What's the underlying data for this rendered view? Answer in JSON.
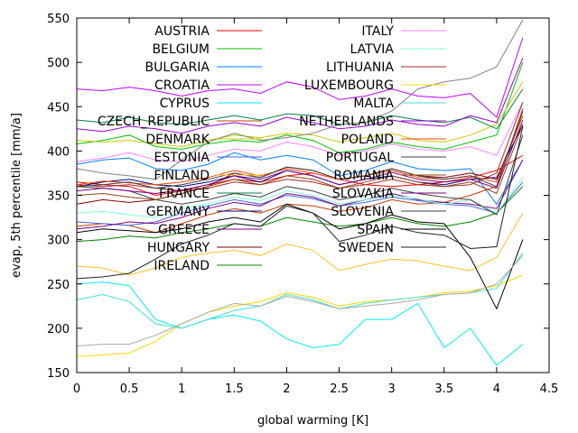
{
  "chart_data": {
    "type": "line",
    "title": "",
    "xlabel": "global warming [K]",
    "ylabel": "evap, 5th percentile [mm/a]",
    "xlim": [
      0,
      4.5
    ],
    "ylim": [
      150,
      550
    ],
    "x_ticks": [
      "0",
      "0.5",
      "1",
      "1.5",
      "2",
      "2.5",
      "3",
      "3.5",
      "4",
      "4.5"
    ],
    "y_ticks": [
      "150",
      "200",
      "250",
      "300",
      "350",
      "400",
      "450",
      "500",
      "550"
    ],
    "grid": false,
    "legend_position": "top, inside, two columns",
    "x": [
      0,
      0.25,
      0.5,
      0.75,
      1,
      1.25,
      1.5,
      1.75,
      2,
      2.25,
      2.5,
      2.75,
      3,
      3.25,
      3.5,
      3.75,
      4,
      4.25
    ],
    "series": [
      {
        "name": "AUSTRIA",
        "color": "#ff0000",
        "values": [
          365,
          362,
          360,
          350,
          355,
          362,
          368,
          365,
          372,
          375,
          368,
          362,
          360,
          362,
          365,
          370,
          378,
          395
        ]
      },
      {
        "name": "BELGIUM",
        "color": "#00c000",
        "values": [
          408,
          412,
          418,
          405,
          402,
          408,
          412,
          410,
          418,
          412,
          398,
          402,
          410,
          405,
          402,
          410,
          418,
          500
        ]
      },
      {
        "name": "BULGARIA",
        "color": "#0080ff",
        "values": [
          385,
          390,
          392,
          380,
          378,
          385,
          398,
          390,
          395,
          390,
          372,
          378,
          388,
          380,
          378,
          380,
          340,
          390
        ]
      },
      {
        "name": "CROATIA",
        "color": "#c000ff",
        "values": [
          470,
          468,
          472,
          468,
          462,
          468,
          470,
          465,
          478,
          472,
          458,
          462,
          470,
          462,
          460,
          465,
          438,
          528
        ]
      },
      {
        "name": "CYPRUS",
        "color": "#00eeee",
        "values": [
          250,
          252,
          248,
          210,
          200,
          210,
          215,
          208,
          188,
          178,
          182,
          210,
          210,
          228,
          178,
          200,
          158,
          182
        ]
      },
      {
        "name": "CZECH_REPUBLIC",
        "color": "#c04000",
        "values": [
          315,
          318,
          316,
          308,
          318,
          328,
          335,
          330,
          340,
          338,
          332,
          336,
          345,
          340,
          342,
          350,
          360,
          448
        ]
      },
      {
        "name": "DENMARK",
        "color": "#c8c800",
        "values": [
          412,
          410,
          412,
          408,
          405,
          412,
          418,
          415,
          420,
          418,
          410,
          415,
          420,
          412,
          410,
          418,
          430,
          478
        ]
      },
      {
        "name": "ESTONIA",
        "color": "#4169e1",
        "values": [
          320,
          318,
          316,
          320,
          330,
          338,
          345,
          340,
          350,
          346,
          338,
          342,
          348,
          344,
          340,
          338,
          330,
          365
        ]
      },
      {
        "name": "FINLAND",
        "color": "#ffc020",
        "values": [
          270,
          268,
          260,
          268,
          280,
          285,
          288,
          282,
          295,
          288,
          265,
          272,
          278,
          276,
          270,
          265,
          280,
          330
        ]
      },
      {
        "name": "FRANCE",
        "color": "#008040",
        "values": [
          435,
          432,
          438,
          432,
          430,
          435,
          440,
          435,
          442,
          440,
          430,
          432,
          440,
          435,
          432,
          438,
          425,
          470
        ]
      },
      {
        "name": "GERMANY",
        "color": "#000080",
        "values": [
          360,
          365,
          368,
          362,
          360,
          365,
          372,
          365,
          378,
          372,
          362,
          368,
          372,
          365,
          362,
          368,
          370,
          430
        ]
      },
      {
        "name": "GREECE",
        "color": "#800080",
        "values": [
          312,
          315,
          320,
          318,
          325,
          335,
          342,
          338,
          352,
          348,
          338,
          345,
          352,
          345,
          342,
          340,
          335,
          390
        ]
      },
      {
        "name": "HUNGARY",
        "color": "#800000",
        "values": [
          340,
          345,
          342,
          345,
          352,
          360,
          375,
          370,
          382,
          378,
          368,
          372,
          380,
          372,
          370,
          375,
          368,
          440
        ]
      },
      {
        "name": "IRELAND",
        "color": "#008000",
        "values": [
          298,
          300,
          304,
          302,
          308,
          312,
          318,
          315,
          325,
          320,
          315,
          318,
          325,
          318,
          315,
          320,
          330,
          360
        ]
      },
      {
        "name": "ITALY",
        "color": "#ff80ff",
        "values": [
          388,
          392,
          398,
          390,
          388,
          395,
          402,
          400,
          410,
          405,
          395,
          400,
          408,
          402,
          400,
          405,
          395,
          455
        ]
      },
      {
        "name": "LATVIA",
        "color": "#7fffd4",
        "values": [
          330,
          332,
          328,
          325,
          335,
          340,
          348,
          344,
          355,
          350,
          340,
          345,
          350,
          346,
          340,
          345,
          330,
          370
        ]
      },
      {
        "name": "LITHUANIA",
        "color": "#a52a2a",
        "values": [
          362,
          360,
          362,
          358,
          355,
          358,
          365,
          362,
          368,
          365,
          358,
          362,
          368,
          362,
          360,
          362,
          375,
          455
        ]
      },
      {
        "name": "LUXEMBOURG",
        "color": "#ffd700",
        "values": [
          168,
          170,
          172,
          185,
          205,
          218,
          225,
          230,
          240,
          235,
          225,
          230,
          232,
          235,
          240,
          242,
          248,
          260
        ]
      },
      {
        "name": "MALTA",
        "color": "#40e0d0",
        "values": [
          232,
          238,
          230,
          205,
          200,
          210,
          220,
          225,
          238,
          232,
          222,
          228,
          232,
          235,
          238,
          240,
          245,
          285
        ]
      },
      {
        "name": "NETHERLANDS",
        "color": "#9400d3",
        "values": [
          425,
          422,
          428,
          425,
          420,
          428,
          432,
          428,
          438,
          432,
          425,
          428,
          435,
          430,
          428,
          440,
          432,
          505
        ]
      },
      {
        "name": "POLAND",
        "color": "#ff4500",
        "values": [
          362,
          366,
          364,
          362,
          365,
          370,
          378,
          372,
          380,
          375,
          368,
          372,
          378,
          370,
          368,
          372,
          365,
          440
        ]
      },
      {
        "name": "PORTUGAL",
        "color": "#404040",
        "values": [
          360,
          358,
          355,
          345,
          340,
          345,
          352,
          348,
          360,
          355,
          345,
          350,
          358,
          352,
          348,
          345,
          328,
          418
        ]
      },
      {
        "name": "ROMANIA",
        "color": "#8b4513",
        "values": [
          350,
          352,
          348,
          345,
          352,
          360,
          368,
          362,
          372,
          368,
          358,
          365,
          372,
          365,
          360,
          365,
          352,
          430
        ]
      },
      {
        "name": "SLOVAKIA",
        "color": "#800080",
        "values": [
          355,
          358,
          355,
          352,
          356,
          362,
          372,
          368,
          378,
          372,
          362,
          368,
          376,
          368,
          365,
          368,
          358,
          435
        ]
      },
      {
        "name": "SLOVENIA",
        "color": "#404040",
        "values": [
          360,
          362,
          365,
          358,
          362,
          368,
          375,
          370,
          382,
          378,
          368,
          372,
          380,
          372,
          368,
          372,
          360,
          445
        ]
      },
      {
        "name": "SPAIN",
        "color": "#000000",
        "values": [
          308,
          312,
          310,
          308,
          312,
          320,
          325,
          320,
          340,
          330,
          312,
          318,
          328,
          320,
          318,
          280,
          222,
          300
        ]
      },
      {
        "name": "SWEDEN",
        "color": "#202020",
        "values": [
          256,
          258,
          262,
          278,
          295,
          305,
          318,
          315,
          338,
          330,
          298,
          305,
          315,
          308,
          305,
          290,
          292,
          428
        ]
      },
      {
        "name": "",
        "color": "#a9a9a9",
        "values": [
          180,
          182,
          182,
          192,
          205,
          218,
          228,
          225,
          236,
          230,
          222,
          225,
          228,
          232,
          238,
          240,
          250,
          282
        ]
      },
      {
        "name": "",
        "color": "#808080",
        "values": [
          380,
          375,
          372,
          368,
          390,
          410,
          420,
          412,
          415,
          420,
          430,
          432,
          445,
          470,
          478,
          482,
          495,
          548
        ]
      }
    ]
  }
}
